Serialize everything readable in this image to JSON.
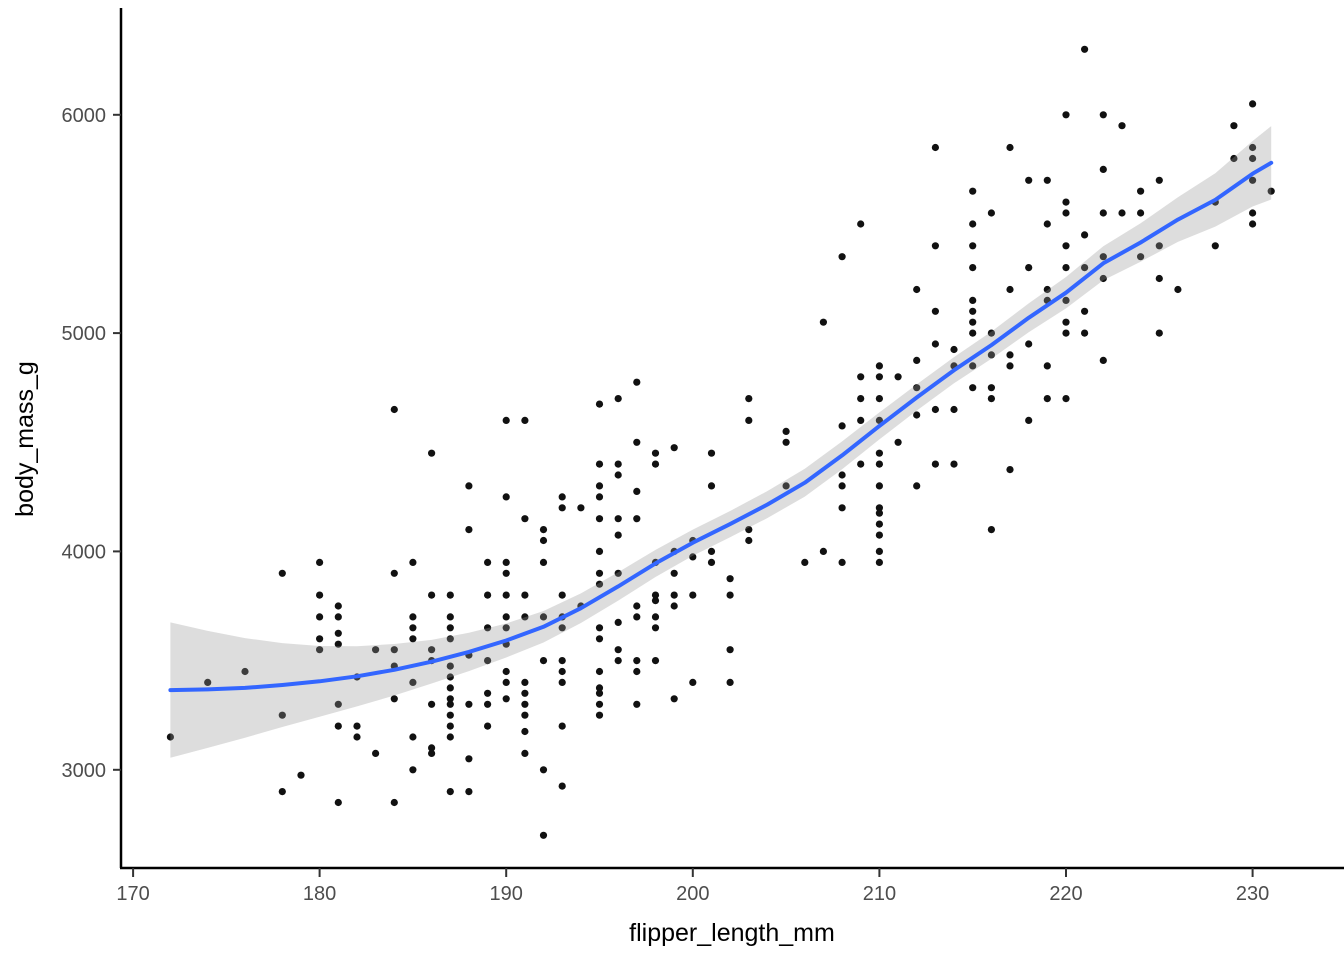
{
  "chart_data": {
    "type": "scatter",
    "title": "",
    "xlabel": "flipper_length_mm",
    "ylabel": "body_mass_g",
    "x_ticks": [
      170,
      180,
      190,
      200,
      210,
      220,
      230
    ],
    "y_ticks": [
      3000,
      4000,
      5000,
      6000
    ],
    "xlim": [
      169.3,
      234.9
    ],
    "ylim": [
      2550,
      6480
    ],
    "grid": "off",
    "legend": "none",
    "colors": {
      "point": "#111111",
      "smooth_line": "#3366FF",
      "band": "#999999",
      "band_opacity": 0.33,
      "axis_line": "#000000",
      "tick_text": "#4d4d4d",
      "title_text": "#000000",
      "background": "#ffffff"
    },
    "points": [
      [
        172,
        3150
      ],
      [
        174,
        3400
      ],
      [
        176,
        3450
      ],
      [
        178,
        3900
      ],
      [
        178,
        3250
      ],
      [
        178,
        2900
      ],
      [
        179,
        2975
      ],
      [
        180,
        3950
      ],
      [
        180,
        3800
      ],
      [
        180,
        3700
      ],
      [
        180,
        3600
      ],
      [
        180,
        3550
      ],
      [
        181,
        3750
      ],
      [
        181,
        3700
      ],
      [
        181,
        3625
      ],
      [
        181,
        3575
      ],
      [
        181,
        3300
      ],
      [
        181,
        3200
      ],
      [
        181,
        2850
      ],
      [
        182,
        3425
      ],
      [
        182,
        3200
      ],
      [
        182,
        3150
      ],
      [
        183,
        3550
      ],
      [
        183,
        3075
      ],
      [
        184,
        4650
      ],
      [
        184,
        3900
      ],
      [
        184,
        3550
      ],
      [
        184,
        3475
      ],
      [
        184,
        3325
      ],
      [
        184,
        2850
      ],
      [
        185,
        3950
      ],
      [
        185,
        3700
      ],
      [
        185,
        3650
      ],
      [
        185,
        3600
      ],
      [
        185,
        3400
      ],
      [
        185,
        3150
      ],
      [
        185,
        3000
      ],
      [
        186,
        4450
      ],
      [
        186,
        3800
      ],
      [
        186,
        3550
      ],
      [
        186,
        3500
      ],
      [
        186,
        3300
      ],
      [
        186,
        3100
      ],
      [
        186,
        3075
      ],
      [
        187,
        3800
      ],
      [
        187,
        3700
      ],
      [
        187,
        3650
      ],
      [
        187,
        3600
      ],
      [
        187,
        3475
      ],
      [
        187,
        3425
      ],
      [
        187,
        3375
      ],
      [
        187,
        3325
      ],
      [
        187,
        3300
      ],
      [
        187,
        3250
      ],
      [
        187,
        3200
      ],
      [
        187,
        3150
      ],
      [
        187,
        2900
      ],
      [
        188,
        4300
      ],
      [
        188,
        4100
      ],
      [
        188,
        3525
      ],
      [
        188,
        3300
      ],
      [
        188,
        3050
      ],
      [
        188,
        2900
      ],
      [
        189,
        3950
      ],
      [
        189,
        3800
      ],
      [
        189,
        3650
      ],
      [
        189,
        3500
      ],
      [
        189,
        3350
      ],
      [
        189,
        3300
      ],
      [
        189,
        3200
      ],
      [
        190,
        4600
      ],
      [
        190,
        4250
      ],
      [
        190,
        3950
      ],
      [
        190,
        3900
      ],
      [
        190,
        3800
      ],
      [
        190,
        3700
      ],
      [
        190,
        3650
      ],
      [
        190,
        3575
      ],
      [
        190,
        3450
      ],
      [
        190,
        3400
      ],
      [
        190,
        3325
      ],
      [
        191,
        4600
      ],
      [
        191,
        4150
      ],
      [
        191,
        3800
      ],
      [
        191,
        3700
      ],
      [
        191,
        3400
      ],
      [
        191,
        3350
      ],
      [
        191,
        3300
      ],
      [
        191,
        3250
      ],
      [
        191,
        3175
      ],
      [
        191,
        3075
      ],
      [
        192,
        4100
      ],
      [
        192,
        4050
      ],
      [
        192,
        3950
      ],
      [
        192,
        3700
      ],
      [
        192,
        3500
      ],
      [
        192,
        3000
      ],
      [
        192,
        2700
      ],
      [
        193,
        4250
      ],
      [
        193,
        4200
      ],
      [
        193,
        3800
      ],
      [
        193,
        3700
      ],
      [
        193,
        3650
      ],
      [
        193,
        3500
      ],
      [
        193,
        3450
      ],
      [
        193,
        3400
      ],
      [
        193,
        3200
      ],
      [
        193,
        2925
      ],
      [
        194,
        4200
      ],
      [
        194,
        3750
      ],
      [
        195,
        4675
      ],
      [
        195,
        4400
      ],
      [
        195,
        4300
      ],
      [
        195,
        4250
      ],
      [
        195,
        4150
      ],
      [
        195,
        4000
      ],
      [
        195,
        3900
      ],
      [
        195,
        3850
      ],
      [
        195,
        3650
      ],
      [
        195,
        3600
      ],
      [
        195,
        3450
      ],
      [
        195,
        3375
      ],
      [
        195,
        3350
      ],
      [
        195,
        3300
      ],
      [
        195,
        3250
      ],
      [
        196,
        4700
      ],
      [
        196,
        4400
      ],
      [
        196,
        4350
      ],
      [
        196,
        4150
      ],
      [
        196,
        4075
      ],
      [
        196,
        3900
      ],
      [
        196,
        3675
      ],
      [
        196,
        3550
      ],
      [
        196,
        3500
      ],
      [
        197,
        4775
      ],
      [
        197,
        4500
      ],
      [
        197,
        4275
      ],
      [
        197,
        4150
      ],
      [
        197,
        3750
      ],
      [
        197,
        3700
      ],
      [
        197,
        3500
      ],
      [
        197,
        3450
      ],
      [
        197,
        3300
      ],
      [
        198,
        4450
      ],
      [
        198,
        4400
      ],
      [
        198,
        3950
      ],
      [
        198,
        3800
      ],
      [
        198,
        3775
      ],
      [
        198,
        3700
      ],
      [
        198,
        3650
      ],
      [
        198,
        3500
      ],
      [
        199,
        4475
      ],
      [
        199,
        4000
      ],
      [
        199,
        3900
      ],
      [
        199,
        3800
      ],
      [
        199,
        3750
      ],
      [
        199,
        3325
      ],
      [
        200,
        4050
      ],
      [
        200,
        3975
      ],
      [
        200,
        3800
      ],
      [
        200,
        3400
      ],
      [
        201,
        4450
      ],
      [
        201,
        4300
      ],
      [
        201,
        4000
      ],
      [
        201,
        3950
      ],
      [
        202,
        3875
      ],
      [
        202,
        3800
      ],
      [
        202,
        3550
      ],
      [
        202,
        3400
      ],
      [
        203,
        4700
      ],
      [
        203,
        4600
      ],
      [
        203,
        4100
      ],
      [
        203,
        4050
      ],
      [
        205,
        4550
      ],
      [
        205,
        4500
      ],
      [
        205,
        4300
      ],
      [
        206,
        3950
      ],
      [
        207,
        5050
      ],
      [
        207,
        4000
      ],
      [
        208,
        5350
      ],
      [
        208,
        4575
      ],
      [
        208,
        4350
      ],
      [
        208,
        4300
      ],
      [
        208,
        4200
      ],
      [
        208,
        3950
      ],
      [
        209,
        5500
      ],
      [
        209,
        4800
      ],
      [
        209,
        4700
      ],
      [
        209,
        4600
      ],
      [
        209,
        4400
      ],
      [
        210,
        4850
      ],
      [
        210,
        4800
      ],
      [
        210,
        4700
      ],
      [
        210,
        4600
      ],
      [
        210,
        4450
      ],
      [
        210,
        4400
      ],
      [
        210,
        4300
      ],
      [
        210,
        4200
      ],
      [
        210,
        4175
      ],
      [
        210,
        4125
      ],
      [
        210,
        4075
      ],
      [
        210,
        4000
      ],
      [
        210,
        3950
      ],
      [
        211,
        4800
      ],
      [
        211,
        4500
      ],
      [
        212,
        5200
      ],
      [
        212,
        4875
      ],
      [
        212,
        4750
      ],
      [
        212,
        4625
      ],
      [
        212,
        4300
      ],
      [
        213,
        5850
      ],
      [
        213,
        5400
      ],
      [
        213,
        5100
      ],
      [
        213,
        4950
      ],
      [
        213,
        4650
      ],
      [
        213,
        4400
      ],
      [
        214,
        4925
      ],
      [
        214,
        4850
      ],
      [
        214,
        4650
      ],
      [
        214,
        4400
      ],
      [
        215,
        5650
      ],
      [
        215,
        5500
      ],
      [
        215,
        5400
      ],
      [
        215,
        5300
      ],
      [
        215,
        5150
      ],
      [
        215,
        5100
      ],
      [
        215,
        5050
      ],
      [
        215,
        5000
      ],
      [
        215,
        4850
      ],
      [
        215,
        4750
      ],
      [
        216,
        5550
      ],
      [
        216,
        5000
      ],
      [
        216,
        4900
      ],
      [
        216,
        4750
      ],
      [
        216,
        4700
      ],
      [
        216,
        4100
      ],
      [
        217,
        5850
      ],
      [
        217,
        5200
      ],
      [
        217,
        4900
      ],
      [
        217,
        4850
      ],
      [
        217,
        4375
      ],
      [
        218,
        5700
      ],
      [
        218,
        5300
      ],
      [
        218,
        4950
      ],
      [
        218,
        4600
      ],
      [
        219,
        5700
      ],
      [
        219,
        5500
      ],
      [
        219,
        5200
      ],
      [
        219,
        5150
      ],
      [
        219,
        4850
      ],
      [
        219,
        4700
      ],
      [
        220,
        6000
      ],
      [
        220,
        5600
      ],
      [
        220,
        5550
      ],
      [
        220,
        5400
      ],
      [
        220,
        5300
      ],
      [
        220,
        5150
      ],
      [
        220,
        5050
      ],
      [
        220,
        5000
      ],
      [
        220,
        4700
      ],
      [
        221,
        6300
      ],
      [
        221,
        5450
      ],
      [
        221,
        5300
      ],
      [
        221,
        5100
      ],
      [
        221,
        5000
      ],
      [
        222,
        6000
      ],
      [
        222,
        5750
      ],
      [
        222,
        5550
      ],
      [
        222,
        5350
      ],
      [
        222,
        5250
      ],
      [
        222,
        4875
      ],
      [
        223,
        5950
      ],
      [
        223,
        5550
      ],
      [
        224,
        5650
      ],
      [
        224,
        5550
      ],
      [
        224,
        5350
      ],
      [
        225,
        5700
      ],
      [
        225,
        5400
      ],
      [
        225,
        5250
      ],
      [
        225,
        5000
      ],
      [
        226,
        5200
      ],
      [
        228,
        5600
      ],
      [
        228,
        5400
      ],
      [
        229,
        5950
      ],
      [
        229,
        5800
      ],
      [
        230,
        6050
      ],
      [
        230,
        5850
      ],
      [
        230,
        5800
      ],
      [
        230,
        5700
      ],
      [
        230,
        5550
      ],
      [
        230,
        5500
      ],
      [
        231,
        5650
      ]
    ],
    "smooth": {
      "x": [
        172,
        174,
        176,
        178,
        180,
        182,
        184,
        186,
        188,
        190,
        192,
        194,
        196,
        198,
        200,
        202,
        204,
        206,
        208,
        210,
        212,
        214,
        216,
        218,
        220,
        222,
        224,
        226,
        228,
        230,
        231
      ],
      "y": [
        3365,
        3368,
        3375,
        3388,
        3405,
        3428,
        3458,
        3495,
        3540,
        3592,
        3655,
        3740,
        3840,
        3945,
        4040,
        4125,
        4215,
        4315,
        4440,
        4575,
        4705,
        4830,
        4945,
        5070,
        5185,
        5320,
        5415,
        5520,
        5610,
        5730,
        5780
      ],
      "upper": [
        3675,
        3636,
        3603,
        3580,
        3567,
        3566,
        3576,
        3595,
        3628,
        3670,
        3727,
        3808,
        3905,
        4007,
        4100,
        4185,
        4277,
        4379,
        4504,
        4637,
        4765,
        4890,
        5007,
        5136,
        5257,
        5398,
        5503,
        5622,
        5732,
        5880,
        5948
      ],
      "lower": [
        3055,
        3100,
        3147,
        3196,
        3243,
        3290,
        3340,
        3395,
        3452,
        3514,
        3583,
        3672,
        3775,
        3883,
        3980,
        4065,
        4153,
        4251,
        4376,
        4513,
        4645,
        4770,
        4883,
        5004,
        5113,
        5242,
        5327,
        5418,
        5488,
        5580,
        5612
      ]
    }
  }
}
